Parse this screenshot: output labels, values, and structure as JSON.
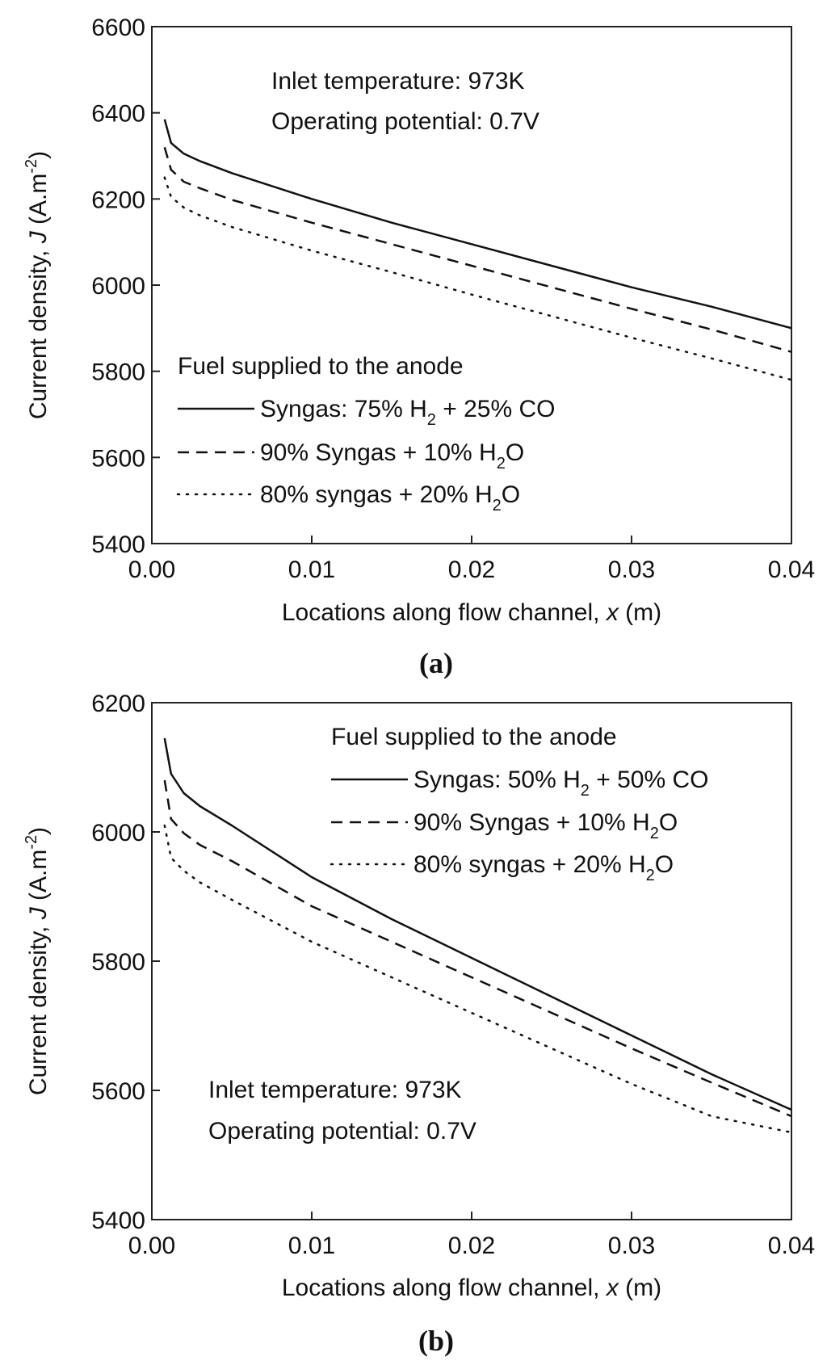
{
  "chart_data": [
    {
      "type": "line",
      "panel_label": "a",
      "xlabel": "Locations along flow channel, x (m)",
      "ylabel": "Current density, J (A.m-2)",
      "xlim": [
        0.0,
        0.04
      ],
      "ylim": [
        5400,
        6600
      ],
      "xticks": [
        0.0,
        0.01,
        0.02,
        0.03,
        0.04
      ],
      "xtick_labels": [
        "0.00",
        "0.01",
        "0.02",
        "0.03",
        "0.04"
      ],
      "yticks": [
        5400,
        5600,
        5800,
        6000,
        6200,
        6400,
        6600
      ],
      "ytick_labels": [
        "5400",
        "5600",
        "5800",
        "6000",
        "6200",
        "6400",
        "6600"
      ],
      "annotations": [
        "Inlet temperature: 973K",
        "Operating potential: 0.7V"
      ],
      "legend_title": "Fuel supplied to the anode",
      "series": [
        {
          "name": "Syngas: 75% H2 + 25% CO",
          "style": "solid",
          "x": [
            0.0008,
            0.0012,
            0.002,
            0.003,
            0.005,
            0.01,
            0.015,
            0.02,
            0.025,
            0.03,
            0.035,
            0.04
          ],
          "y": [
            6385,
            6330,
            6305,
            6288,
            6260,
            6200,
            6145,
            6095,
            6045,
            5995,
            5950,
            5900
          ]
        },
        {
          "name": "90% Syngas + 10% H2O",
          "style": "dashed",
          "x": [
            0.0008,
            0.0012,
            0.002,
            0.003,
            0.005,
            0.01,
            0.015,
            0.02,
            0.025,
            0.03,
            0.035,
            0.04
          ],
          "y": [
            6320,
            6268,
            6240,
            6225,
            6198,
            6145,
            6095,
            6045,
            5995,
            5945,
            5897,
            5845
          ]
        },
        {
          "name": "80% syngas + 20% H2O",
          "style": "dotted",
          "x": [
            0.0008,
            0.0012,
            0.002,
            0.003,
            0.005,
            0.01,
            0.015,
            0.02,
            0.025,
            0.03,
            0.035,
            0.04
          ],
          "y": [
            6250,
            6205,
            6180,
            6162,
            6135,
            6080,
            6030,
            5978,
            5928,
            5878,
            5830,
            5780
          ]
        }
      ]
    },
    {
      "type": "line",
      "panel_label": "b",
      "xlabel": "Locations along flow channel, x (m)",
      "ylabel": "Current density, J (A.m-2)",
      "xlim": [
        0.0,
        0.04
      ],
      "ylim": [
        5400,
        6200
      ],
      "xticks": [
        0.0,
        0.01,
        0.02,
        0.03,
        0.04
      ],
      "xtick_labels": [
        "0.00",
        "0.01",
        "0.02",
        "0.03",
        "0.04"
      ],
      "yticks": [
        5400,
        5600,
        5800,
        6000,
        6200
      ],
      "ytick_labels": [
        "5400",
        "5600",
        "5800",
        "6000",
        "6200"
      ],
      "annotations": [
        "Inlet temperature: 973K",
        "Operating potential: 0.7V"
      ],
      "legend_title": "Fuel supplied to the anode",
      "series": [
        {
          "name": "Syngas: 50% H2 + 50% CO",
          "style": "solid",
          "x": [
            0.0008,
            0.0012,
            0.002,
            0.003,
            0.005,
            0.01,
            0.015,
            0.02,
            0.025,
            0.03,
            0.035,
            0.04
          ],
          "y": [
            6145,
            6090,
            6060,
            6040,
            6010,
            5930,
            5865,
            5805,
            5745,
            5685,
            5625,
            5570
          ]
        },
        {
          "name": "90% Syngas + 10% H2O",
          "style": "dashed",
          "x": [
            0.0008,
            0.0012,
            0.002,
            0.003,
            0.005,
            0.01,
            0.015,
            0.02,
            0.025,
            0.03,
            0.035,
            0.04
          ],
          "y": [
            6080,
            6020,
            5998,
            5980,
            5955,
            5885,
            5830,
            5775,
            5720,
            5665,
            5612,
            5560
          ]
        },
        {
          "name": "80% syngas + 20% H2O",
          "style": "dotted",
          "x": [
            0.0008,
            0.0012,
            0.002,
            0.003,
            0.005,
            0.01,
            0.015,
            0.02,
            0.025,
            0.03,
            0.035,
            0.04
          ],
          "y": [
            6010,
            5960,
            5940,
            5922,
            5895,
            5830,
            5775,
            5720,
            5665,
            5610,
            5560,
            5535
          ]
        }
      ]
    }
  ],
  "labels": {
    "panel_a": "(a)",
    "panel_b": "(b)",
    "ylabel_pre": "Current density, ",
    "ylabel_var": "J",
    "ylabel_unit_open": " (A.m",
    "ylabel_unit_exp": "-2",
    "ylabel_unit_close": ")",
    "xlabel_pre": "Locations along flow channel, ",
    "xlabel_var": "x",
    "xlabel_unit": " (m)",
    "a_note1": "Inlet temperature: 973K",
    "a_note2": "Operating potential: 0.7V",
    "a_legend_title": "Fuel supplied to the anode",
    "a_leg1_pre": "Syngas: 75% H",
    "a_leg1_sub": "2",
    "a_leg1_post": " + 25% CO",
    "a_leg2_pre": "90% Syngas + 10% H",
    "a_leg2_sub": "2",
    "a_leg2_post": "O",
    "a_leg3_pre": "80% syngas + 20% H",
    "a_leg3_sub": "2",
    "a_leg3_post": "O",
    "b_note1": "Inlet temperature: 973K",
    "b_note2": "Operating potential: 0.7V",
    "b_legend_title": "Fuel supplied to the anode",
    "b_leg1_pre": "Syngas: 50% H",
    "b_leg1_sub": "2",
    "b_leg1_post": " + 50% CO",
    "b_leg2_pre": "90% Syngas + 10% H",
    "b_leg2_sub": "2",
    "b_leg2_post": "O",
    "b_leg3_pre": "80% syngas + 20% H",
    "b_leg3_sub": "2",
    "b_leg3_post": "O"
  }
}
